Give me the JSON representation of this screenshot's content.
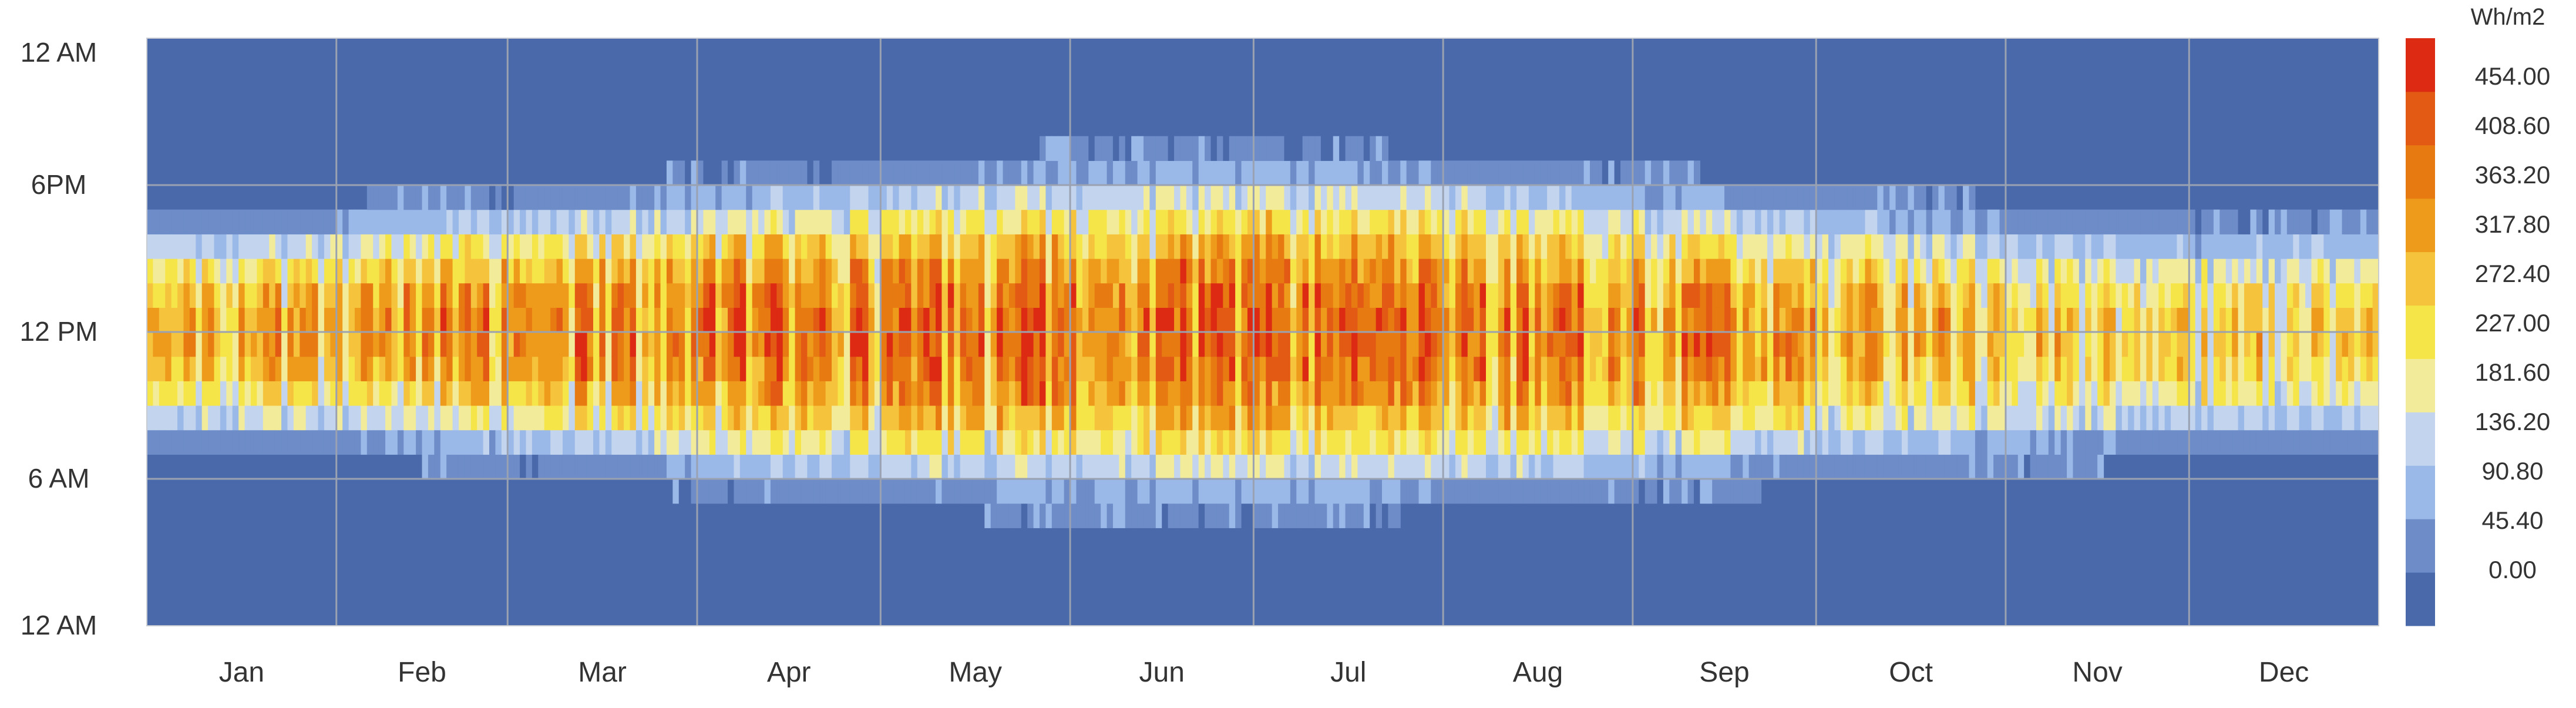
{
  "chart_data": {
    "type": "heatmap",
    "title": "",
    "xlabel": "",
    "ylabel": "",
    "x_tick_labels": [
      "Jan",
      "Feb",
      "Mar",
      "Apr",
      "May",
      "Jun",
      "Jul",
      "Aug",
      "Sep",
      "Oct",
      "Nov",
      "Dec"
    ],
    "y_tick_labels": [
      "12 AM",
      "6PM",
      "12 PM",
      "6 AM",
      "12 AM"
    ],
    "y_tick_hours": [
      24,
      18,
      12,
      6,
      0
    ],
    "days_per_month": [
      31,
      28,
      31,
      30,
      31,
      30,
      31,
      31,
      30,
      31,
      30,
      31
    ],
    "value_range": [
      0,
      454
    ],
    "colorbar": {
      "unit": "Wh/m2",
      "tick_labels": [
        "454.00",
        "408.60",
        "363.20",
        "317.80",
        "272.40",
        "227.00",
        "181.60",
        "136.20",
        "90.80",
        "45.40",
        "0.00"
      ],
      "bins": [
        {
          "min": 0.0,
          "max": 45.4,
          "color": "#4a69aa"
        },
        {
          "min": 45.4,
          "max": 90.8,
          "color": "#6d8cc8"
        },
        {
          "min": 90.8,
          "max": 136.2,
          "color": "#9ab8e8"
        },
        {
          "min": 136.2,
          "max": 181.6,
          "color": "#c2d4ee"
        },
        {
          "min": 181.6,
          "max": 227.0,
          "color": "#f2ec9a"
        },
        {
          "min": 227.0,
          "max": 272.4,
          "color": "#f6e548"
        },
        {
          "min": 272.4,
          "max": 317.8,
          "color": "#f5c43c"
        },
        {
          "min": 317.8,
          "max": 363.2,
          "color": "#ee9a1a"
        },
        {
          "min": 363.2,
          "max": 408.6,
          "color": "#e77b12"
        },
        {
          "min": 408.6,
          "max": 454.0,
          "color": "#e35a14"
        },
        {
          "min": 454.0,
          "max": 500.0,
          "color": "#dd2a12"
        }
      ]
    },
    "sunrise_hour_by_month": [
      7.3,
      7.0,
      6.3,
      5.5,
      5.0,
      4.8,
      4.9,
      5.3,
      5.9,
      6.5,
      7.0,
      7.3
    ],
    "sunset_hour_by_month": [
      16.6,
      17.2,
      17.8,
      18.4,
      18.9,
      19.2,
      19.1,
      18.6,
      17.9,
      17.2,
      16.6,
      16.4
    ],
    "peak_noon_value_by_month": [
      300,
      330,
      360,
      380,
      385,
      380,
      385,
      370,
      350,
      300,
      260,
      250
    ],
    "grid": true,
    "legend": "right"
  }
}
